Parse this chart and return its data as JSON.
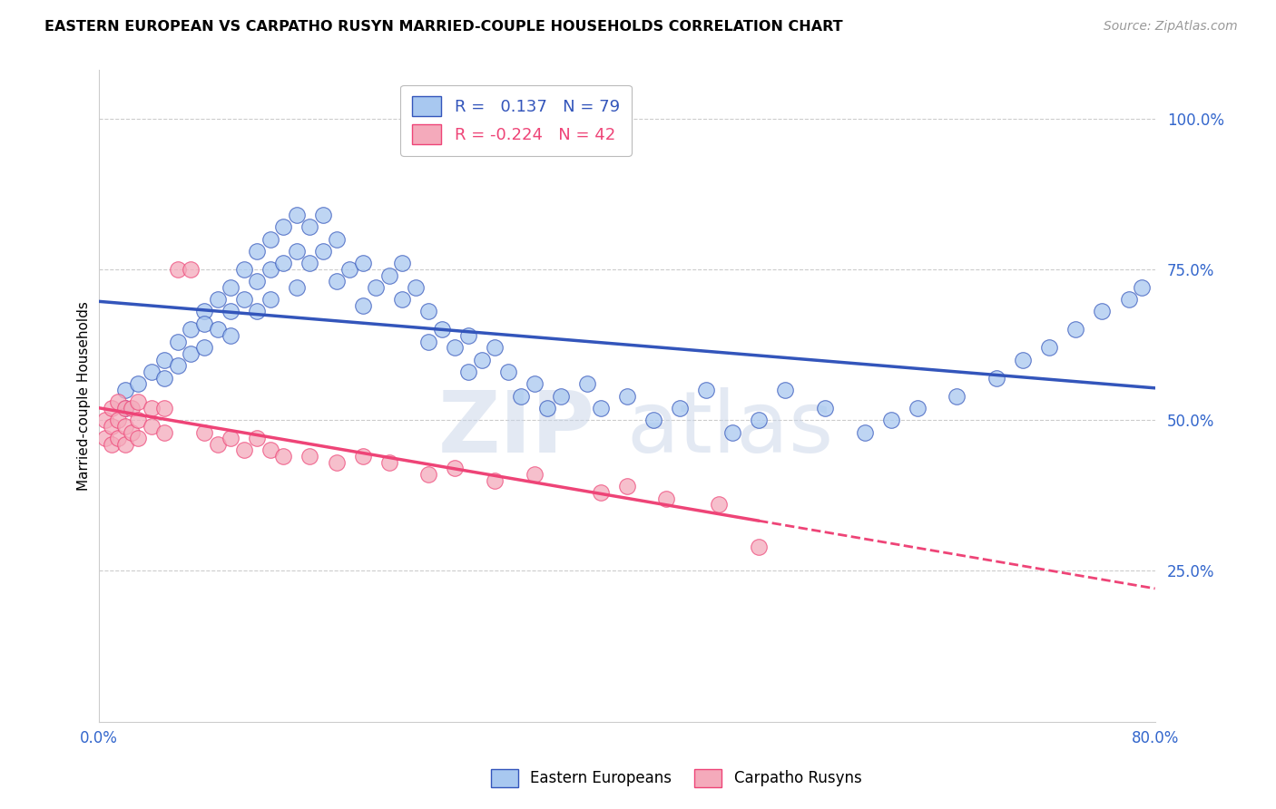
{
  "title": "EASTERN EUROPEAN VS CARPATHO RUSYN MARRIED-COUPLE HOUSEHOLDS CORRELATION CHART",
  "source": "Source: ZipAtlas.com",
  "ylabel": "Married-couple Households",
  "xlim": [
    0.0,
    0.8
  ],
  "ylim": [
    0.0,
    1.08
  ],
  "yticks": [
    0.25,
    0.5,
    0.75,
    1.0
  ],
  "ytick_labels": [
    "25.0%",
    "50.0%",
    "75.0%",
    "100.0%"
  ],
  "xticks": [
    0.0,
    0.8
  ],
  "xtick_labels": [
    "0.0%",
    "80.0%"
  ],
  "r_blue": 0.137,
  "n_blue": 79,
  "r_pink": -0.224,
  "n_pink": 42,
  "blue_color": "#A8C8F0",
  "pink_color": "#F4AABB",
  "trend_blue": "#3355BB",
  "trend_pink": "#EE4477",
  "watermark": "ZIPatlas",
  "blue_x": [
    0.02,
    0.02,
    0.03,
    0.04,
    0.05,
    0.05,
    0.06,
    0.06,
    0.07,
    0.07,
    0.08,
    0.08,
    0.08,
    0.09,
    0.09,
    0.1,
    0.1,
    0.1,
    0.11,
    0.11,
    0.12,
    0.12,
    0.12,
    0.13,
    0.13,
    0.13,
    0.14,
    0.14,
    0.15,
    0.15,
    0.15,
    0.16,
    0.16,
    0.17,
    0.17,
    0.18,
    0.18,
    0.19,
    0.2,
    0.2,
    0.21,
    0.22,
    0.23,
    0.23,
    0.24,
    0.25,
    0.25,
    0.26,
    0.27,
    0.28,
    0.28,
    0.29,
    0.3,
    0.31,
    0.32,
    0.33,
    0.34,
    0.35,
    0.37,
    0.38,
    0.4,
    0.42,
    0.44,
    0.46,
    0.48,
    0.5,
    0.52,
    0.55,
    0.58,
    0.6,
    0.62,
    0.65,
    0.68,
    0.7,
    0.72,
    0.74,
    0.76,
    0.78,
    0.79
  ],
  "blue_y": [
    0.55,
    0.52,
    0.56,
    0.58,
    0.6,
    0.57,
    0.63,
    0.59,
    0.65,
    0.61,
    0.68,
    0.66,
    0.62,
    0.7,
    0.65,
    0.72,
    0.68,
    0.64,
    0.75,
    0.7,
    0.78,
    0.73,
    0.68,
    0.8,
    0.75,
    0.7,
    0.82,
    0.76,
    0.84,
    0.78,
    0.72,
    0.82,
    0.76,
    0.84,
    0.78,
    0.8,
    0.73,
    0.75,
    0.76,
    0.69,
    0.72,
    0.74,
    0.76,
    0.7,
    0.72,
    0.68,
    0.63,
    0.65,
    0.62,
    0.64,
    0.58,
    0.6,
    0.62,
    0.58,
    0.54,
    0.56,
    0.52,
    0.54,
    0.56,
    0.52,
    0.54,
    0.5,
    0.52,
    0.55,
    0.48,
    0.5,
    0.55,
    0.52,
    0.48,
    0.5,
    0.52,
    0.54,
    0.57,
    0.6,
    0.62,
    0.65,
    0.68,
    0.7,
    0.72
  ],
  "pink_x": [
    0.005,
    0.005,
    0.01,
    0.01,
    0.01,
    0.015,
    0.015,
    0.015,
    0.02,
    0.02,
    0.02,
    0.025,
    0.025,
    0.03,
    0.03,
    0.03,
    0.04,
    0.04,
    0.05,
    0.05,
    0.06,
    0.07,
    0.08,
    0.09,
    0.1,
    0.11,
    0.12,
    0.13,
    0.14,
    0.16,
    0.18,
    0.2,
    0.22,
    0.25,
    0.27,
    0.3,
    0.33,
    0.38,
    0.4,
    0.43,
    0.47,
    0.5
  ],
  "pink_y": [
    0.5,
    0.47,
    0.52,
    0.49,
    0.46,
    0.53,
    0.5,
    0.47,
    0.52,
    0.49,
    0.46,
    0.52,
    0.48,
    0.53,
    0.5,
    0.47,
    0.52,
    0.49,
    0.52,
    0.48,
    0.75,
    0.75,
    0.48,
    0.46,
    0.47,
    0.45,
    0.47,
    0.45,
    0.44,
    0.44,
    0.43,
    0.44,
    0.43,
    0.41,
    0.42,
    0.4,
    0.41,
    0.38,
    0.39,
    0.37,
    0.36,
    0.29
  ]
}
